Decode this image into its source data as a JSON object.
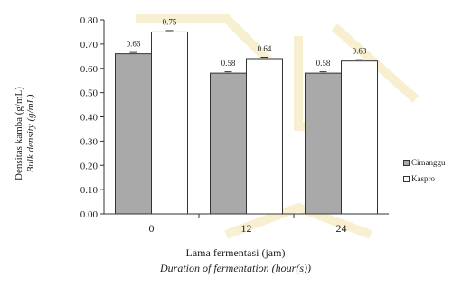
{
  "colors": {
    "series_a_fill": "#a9a9a9",
    "series_b_fill": "#ffffff",
    "axis": "#333333",
    "watermark": "#f6e7b5"
  },
  "chart_data": {
    "type": "bar",
    "categories": [
      "0",
      "12",
      "24"
    ],
    "series": [
      {
        "name": "Cimanggu",
        "values": [
          0.66,
          0.58,
          0.58
        ]
      },
      {
        "name": "Kaspro",
        "values": [
          0.75,
          0.64,
          0.63
        ]
      }
    ],
    "ylim": [
      0,
      0.8
    ],
    "yticks": [
      "0.00",
      "0.10",
      "0.20",
      "0.30",
      "0.40",
      "0.50",
      "0.60",
      "0.70",
      "0.80"
    ],
    "ylabel_line1": "Densitas kamba (g/mL)",
    "ylabel_line2": "Bulk density (g/mL)",
    "xlabel_line1": "Lama fermentasi (jam)",
    "xlabel_line2": "Duration of fermentation (hour(s))",
    "data_labels": [
      [
        "0.66",
        "0.75"
      ],
      [
        "0.58",
        "0.64"
      ],
      [
        "0.58",
        "0.63"
      ]
    ],
    "legend_position": "right",
    "grid": false
  },
  "legend": {
    "item1": "Cimanggu",
    "item2": "Kaspro"
  },
  "xlabel": {
    "line1": "Lama fermentasi (jam)",
    "line2": "Duration of fermentation (hour(s))"
  }
}
